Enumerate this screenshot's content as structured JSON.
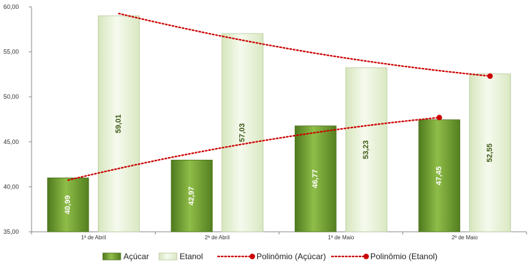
{
  "chart_data": {
    "type": "bar",
    "title": "",
    "xlabel": "",
    "ylabel": "",
    "categories": [
      "1ª de Abril",
      "2ª de Abril",
      "1ª de Maio",
      "2ª de Maio"
    ],
    "ylim": [
      35,
      60
    ],
    "yticks": [
      "35,00",
      "40,00",
      "45,00",
      "50,00",
      "55,00",
      "60,00"
    ],
    "grid": false,
    "legend_position": "bottom",
    "series": [
      {
        "name": "Açúcar",
        "values": [
          40.99,
          42.97,
          46.77,
          47.45
        ],
        "labels": [
          "40,99",
          "42,97",
          "46,77",
          "47,45"
        ],
        "color": "#6e9a2c"
      },
      {
        "name": "Etanol",
        "values": [
          59.01,
          57.03,
          53.23,
          52.55
        ],
        "labels": [
          "59,01",
          "57,03",
          "53,23",
          "52,55"
        ],
        "color": "#e8f2d6"
      }
    ],
    "trendlines": [
      {
        "name": "Polinômio (Açúcar)",
        "of_series": "Açúcar",
        "order": 2,
        "color": "#cc0000"
      },
      {
        "name": "Polinômio (Etanol)",
        "of_series": "Etanol",
        "order": 2,
        "color": "#cc0000"
      }
    ]
  }
}
